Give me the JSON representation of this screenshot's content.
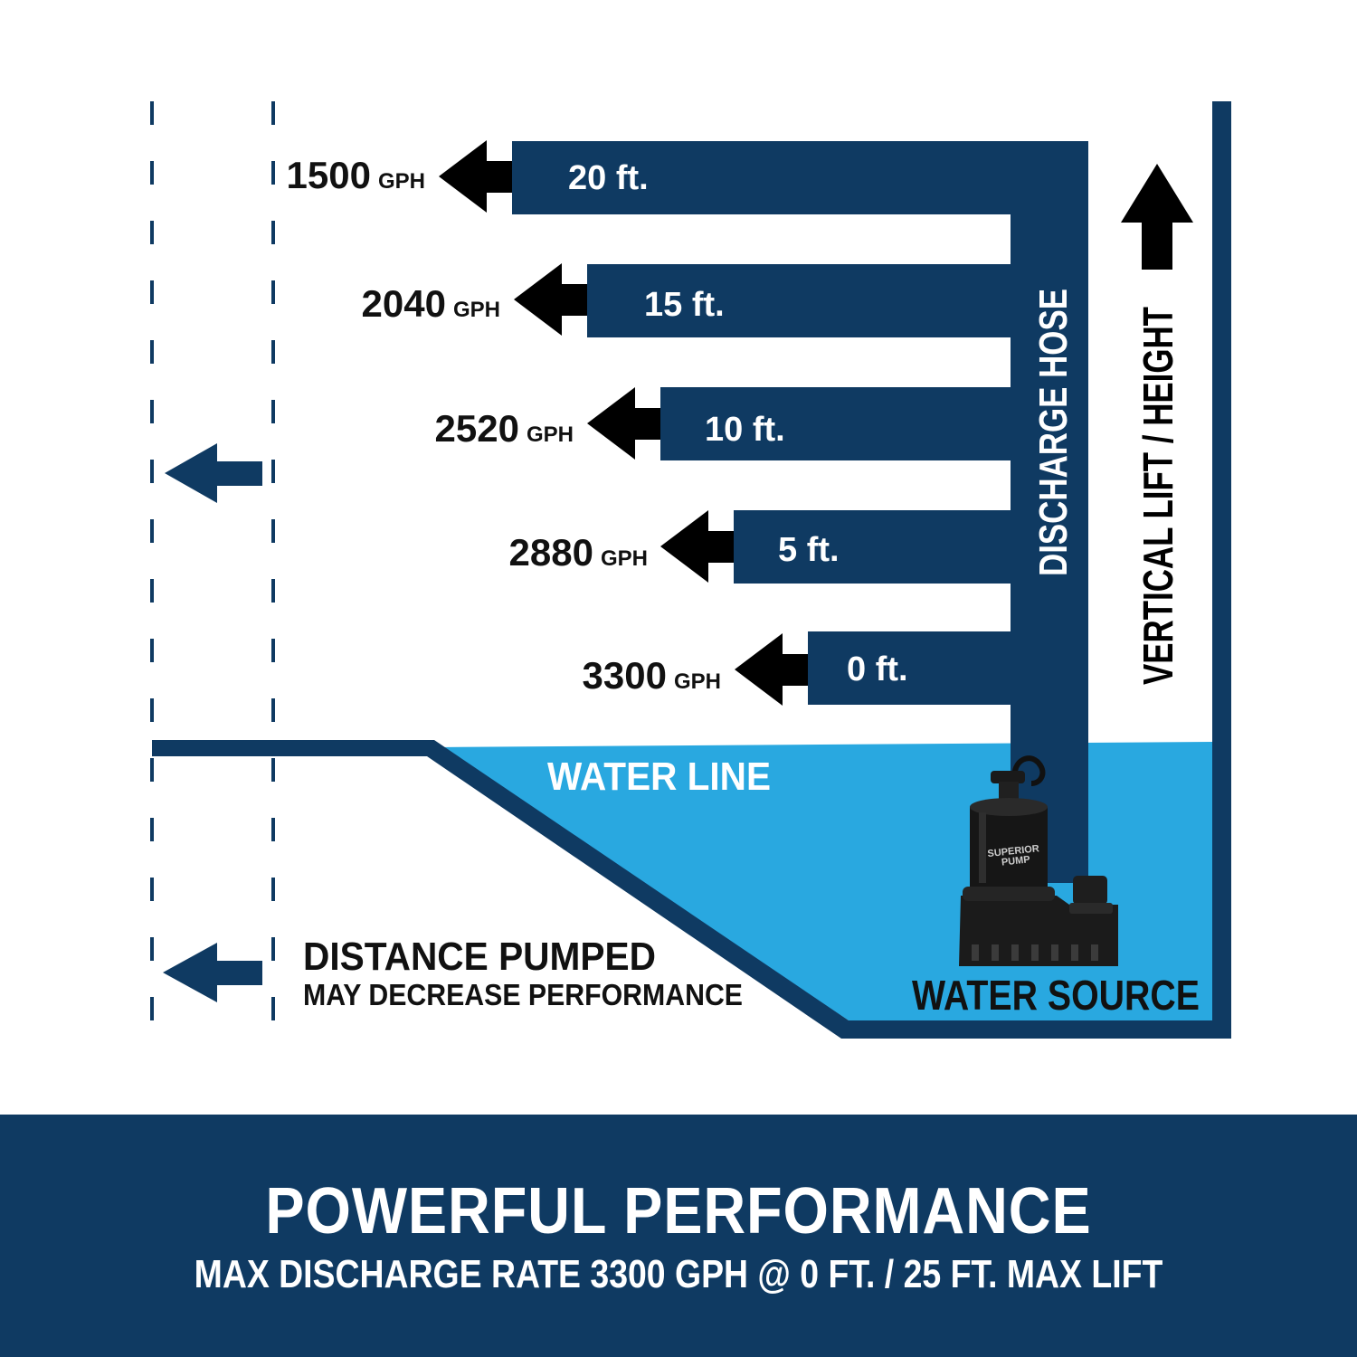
{
  "diagram": {
    "levels": [
      {
        "height": "20 ft.",
        "flow": "1500",
        "unit": "GPH"
      },
      {
        "height": "15 ft.",
        "flow": "2040",
        "unit": "GPH"
      },
      {
        "height": "10 ft.",
        "flow": "2520",
        "unit": "GPH"
      },
      {
        "height": "5 ft.",
        "flow": "2880",
        "unit": "GPH"
      },
      {
        "height": "0 ft.",
        "flow": "3300",
        "unit": "GPH"
      }
    ],
    "discharge_hose_label": "DISCHARGE HOSE",
    "vertical_lift_label": "VERTICAL LIFT / HEIGHT",
    "water_line_label": "WATER LINE",
    "water_source_label": "WATER SOURCE",
    "distance_title": "DISTANCE PUMPED",
    "distance_subtitle": "MAY DECREASE PERFORMANCE",
    "pump_brand": "SUPERIOR PUMP",
    "colors": {
      "navy": "#0f3a62",
      "water": "#29a8e0",
      "arrow": "#000000",
      "text_dark": "#111111"
    }
  },
  "footer": {
    "title": "POWERFUL PERFORMANCE",
    "subtitle": "MAX DISCHARGE RATE 3300 GPH @ 0 FT. / 25 FT. MAX LIFT"
  }
}
